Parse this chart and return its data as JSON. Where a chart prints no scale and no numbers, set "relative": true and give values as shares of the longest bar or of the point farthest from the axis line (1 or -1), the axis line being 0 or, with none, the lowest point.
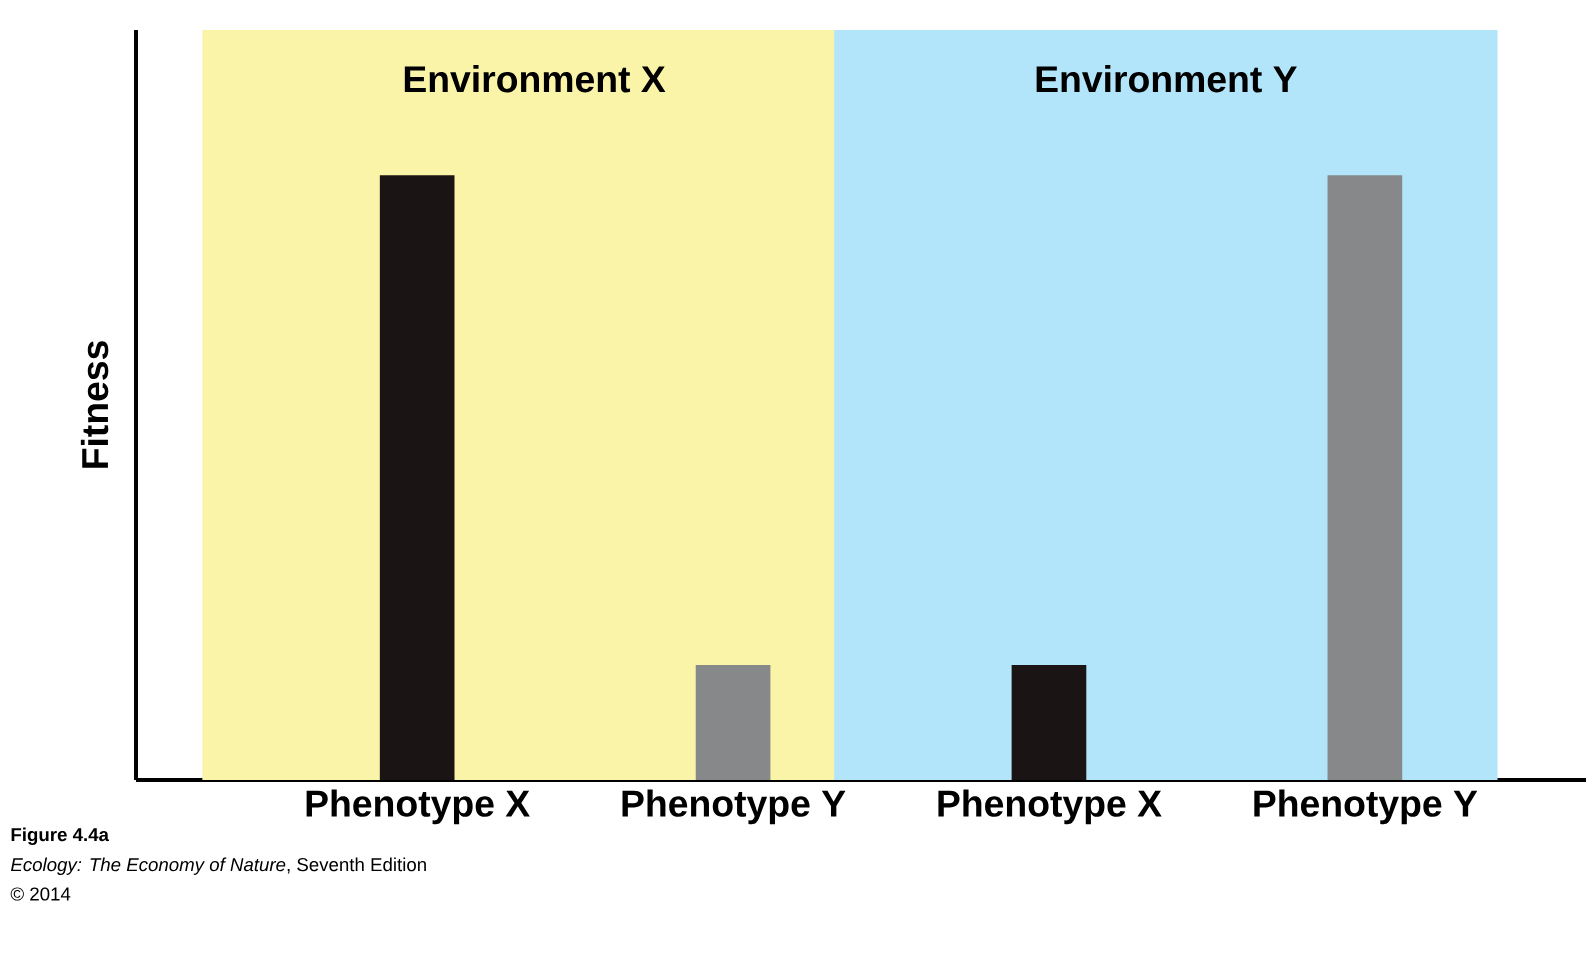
{
  "chart_data": {
    "type": "bar",
    "relative": true,
    "ylabel": "Fitness",
    "categories": [
      "Phenotype X",
      "Phenotype Y",
      "Phenotype X",
      "Phenotype Y"
    ],
    "values": [
      1,
      0.19,
      0.19,
      1
    ],
    "colors": [
      "#1a1415",
      "#87888a",
      "#1a1415",
      "#87888a"
    ],
    "annotations": [
      "Environment X",
      "Environment Y",
      "Figure 4.4a",
      "*Ecology: The Economy of Nature*, Seventh Edition",
      "© 2014"
    ]
  }
}
